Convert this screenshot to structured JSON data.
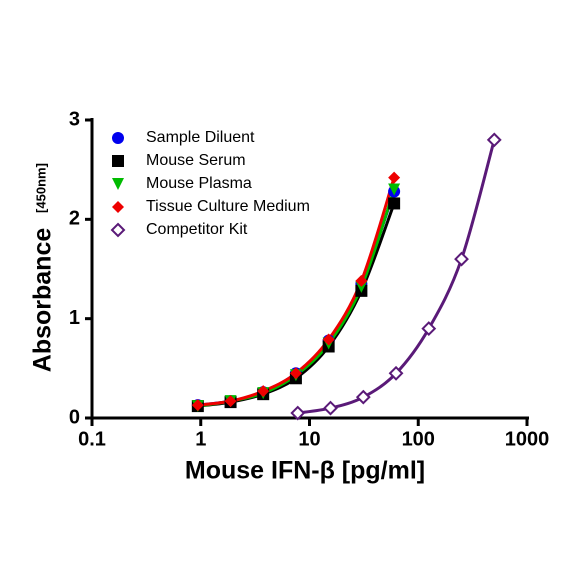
{
  "chart_data": {
    "type": "scatter",
    "x_label": "Mouse IFN-β [pg/ml]",
    "y_label": "Absorbance",
    "y_label_unit": "[450nm]",
    "x_scale": "log",
    "xlim": [
      0.1,
      1000
    ],
    "xticks": [
      0.1,
      1,
      10,
      100,
      1000
    ],
    "ylim": [
      0,
      3
    ],
    "yticks": [
      0,
      1,
      2,
      3
    ],
    "legend": "upper left",
    "series": [
      {
        "name": "Sample Diluent",
        "color": "#0000ee",
        "marker": "circle",
        "x": [
          0.94,
          1.88,
          3.75,
          7.5,
          15,
          30,
          60
        ],
        "values": [
          0.13,
          0.17,
          0.26,
          0.45,
          0.78,
          1.35,
          2.28
        ]
      },
      {
        "name": "Mouse Serum",
        "color": "#000000",
        "marker": "square",
        "x": [
          0.94,
          1.88,
          3.75,
          7.5,
          15,
          30,
          60
        ],
        "values": [
          0.12,
          0.16,
          0.24,
          0.4,
          0.72,
          1.28,
          2.16
        ]
      },
      {
        "name": "Mouse Plasma",
        "color": "#00bb00",
        "marker": "triangle-down",
        "x": [
          0.94,
          1.88,
          3.75,
          7.5,
          15,
          30,
          60
        ],
        "values": [
          0.12,
          0.17,
          0.25,
          0.43,
          0.75,
          1.32,
          2.3
        ]
      },
      {
        "name": "Tissue Culture Medium",
        "color": "#ee0000",
        "marker": "diamond",
        "x": [
          0.94,
          1.88,
          3.75,
          7.5,
          15,
          30,
          60
        ],
        "values": [
          0.13,
          0.17,
          0.27,
          0.45,
          0.79,
          1.38,
          2.42
        ]
      },
      {
        "name": "Competitor Kit",
        "color": "#5a1a78",
        "marker": "open-diamond",
        "x": [
          7.8,
          15.6,
          31.25,
          62.5,
          125,
          250,
          500
        ],
        "values": [
          0.05,
          0.1,
          0.21,
          0.45,
          0.9,
          1.6,
          2.8
        ]
      }
    ]
  }
}
